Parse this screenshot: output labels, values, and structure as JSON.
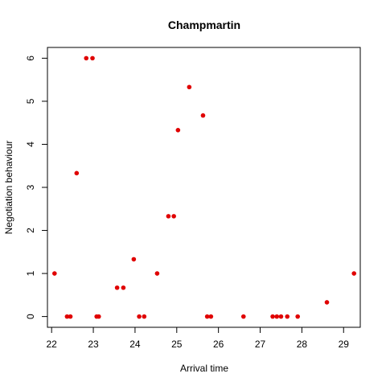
{
  "chart_data": {
    "type": "scatter",
    "title": "Champmartin",
    "xlabel": "Arrival time",
    "ylabel": "Negotiation behaviour",
    "xlim": [
      21.9,
      29.4
    ],
    "ylim": [
      -0.25,
      6.25
    ],
    "xticks": [
      22,
      23,
      24,
      25,
      26,
      27,
      28,
      29
    ],
    "yticks": [
      0,
      1,
      2,
      3,
      4,
      5,
      6
    ],
    "grid": false,
    "legend": "none",
    "point_color": "#e00000",
    "series": [
      {
        "points": [
          [
            22.07,
            1.0
          ],
          [
            22.37,
            0.0
          ],
          [
            22.45,
            0.0
          ],
          [
            22.6,
            3.33
          ],
          [
            22.83,
            6.0
          ],
          [
            22.98,
            6.0
          ],
          [
            23.08,
            0.0
          ],
          [
            23.13,
            0.0
          ],
          [
            23.57,
            0.67
          ],
          [
            23.72,
            0.67
          ],
          [
            23.97,
            1.33
          ],
          [
            24.1,
            0.0
          ],
          [
            24.22,
            0.0
          ],
          [
            24.53,
            1.0
          ],
          [
            24.8,
            2.33
          ],
          [
            24.93,
            2.33
          ],
          [
            25.03,
            4.33
          ],
          [
            25.3,
            5.33
          ],
          [
            25.63,
            4.67
          ],
          [
            25.73,
            0.0
          ],
          [
            25.82,
            0.0
          ],
          [
            26.6,
            0.0
          ],
          [
            27.3,
            0.0
          ],
          [
            27.4,
            0.0
          ],
          [
            27.5,
            0.0
          ],
          [
            27.65,
            0.0
          ],
          [
            27.9,
            0.0
          ],
          [
            28.6,
            0.33
          ],
          [
            29.25,
            1.0
          ]
        ]
      }
    ]
  }
}
